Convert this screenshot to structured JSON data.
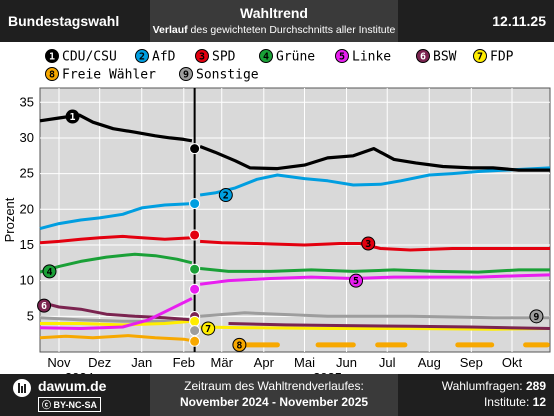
{
  "header": {
    "left_title": "Bundestagswahl",
    "title": "Wahltrend",
    "subtitle_bold": "Verlauf",
    "subtitle_rest": " des gewichteten Durchschnitts aller Institute",
    "date": "12.11.25"
  },
  "footer": {
    "site": "dawum.de",
    "license": "BY-NC-SA",
    "period_label": "Zeitraum des Wahltrendverlaufes:",
    "period_value": "November 2024 - November 2025",
    "polls_label": "Wahlumfragen: ",
    "polls_value": "289",
    "institutes_label": "Institute: ",
    "institutes_value": "12"
  },
  "colors": {
    "background": "#d9d9d9",
    "grid": "#ffffff",
    "event_line": "#000000"
  },
  "chart_data": {
    "type": "line",
    "ylabel": "Prozent",
    "ylim": [
      0,
      37
    ],
    "yticks": [
      5,
      10,
      15,
      20,
      25,
      30,
      35
    ],
    "xlim": [
      "2024-11-01",
      "2025-11-12"
    ],
    "month_ticks": [
      {
        "label": "Nov",
        "date": "2024-11-15"
      },
      {
        "label": "Dez",
        "date": "2024-12-15"
      },
      {
        "label": "Jan",
        "date": "2025-01-15"
      },
      {
        "label": "Feb",
        "date": "2025-02-15"
      },
      {
        "label": "Mär",
        "date": "2025-03-15"
      },
      {
        "label": "Apr",
        "date": "2025-04-15"
      },
      {
        "label": "Mai",
        "date": "2025-05-15"
      },
      {
        "label": "Jun",
        "date": "2025-06-15"
      },
      {
        "label": "Jul",
        "date": "2025-07-15"
      },
      {
        "label": "Aug",
        "date": "2025-08-15"
      },
      {
        "label": "Sep",
        "date": "2025-09-15"
      },
      {
        "label": "Okt",
        "date": "2025-10-15"
      }
    ],
    "year_ticks": [
      {
        "label": "2024",
        "date": "2024-11-30"
      },
      {
        "label": "2025",
        "date": "2025-06-01"
      }
    ],
    "event_date": "2025-02-23",
    "grid": true,
    "legend_position": "top",
    "series": [
      {
        "num": "1",
        "name": "CDU/CSU",
        "color": "#000000",
        "label_pos": [
          "2024-11-25",
          33
        ],
        "result": 28.5,
        "result_after": 28.8,
        "points": [
          [
            "2024-11-01",
            32.4
          ],
          [
            "2024-11-15",
            32.8
          ],
          [
            "2024-11-30",
            33.2
          ],
          [
            "2024-12-10",
            32.2
          ],
          [
            "2024-12-25",
            31.3
          ],
          [
            "2025-01-10",
            30.8
          ],
          [
            "2025-01-25",
            30.3
          ],
          [
            "2025-02-05",
            30.0
          ],
          [
            "2025-02-15",
            29.8
          ],
          [
            "2025-02-21",
            29.6
          ],
          [
            "2025-02-27",
            28.8
          ],
          [
            "2025-03-10",
            28.0
          ],
          [
            "2025-03-25",
            26.8
          ],
          [
            "2025-04-05",
            25.8
          ],
          [
            "2025-04-25",
            25.7
          ],
          [
            "2025-05-15",
            26.2
          ],
          [
            "2025-06-01",
            27.2
          ],
          [
            "2025-06-20",
            27.5
          ],
          [
            "2025-07-05",
            28.5
          ],
          [
            "2025-07-20",
            27.0
          ],
          [
            "2025-08-05",
            26.5
          ],
          [
            "2025-08-25",
            26.0
          ],
          [
            "2025-09-15",
            25.8
          ],
          [
            "2025-10-01",
            25.8
          ],
          [
            "2025-10-20",
            25.5
          ],
          [
            "2025-11-12",
            25.5
          ]
        ]
      },
      {
        "num": "2",
        "name": "AfD",
        "color": "#009ee0",
        "label_pos": [
          "2025-03-18",
          22
        ],
        "result": 20.8,
        "result_after": 22.0,
        "points": [
          [
            "2024-11-01",
            17.3
          ],
          [
            "2024-11-15",
            18.0
          ],
          [
            "2024-12-01",
            18.5
          ],
          [
            "2024-12-15",
            18.8
          ],
          [
            "2025-01-01",
            19.3
          ],
          [
            "2025-01-15",
            20.2
          ],
          [
            "2025-02-01",
            20.6
          ],
          [
            "2025-02-21",
            20.8
          ],
          [
            "2025-02-27",
            22.0
          ],
          [
            "2025-03-10",
            22.3
          ],
          [
            "2025-03-25",
            23.0
          ],
          [
            "2025-04-10",
            24.2
          ],
          [
            "2025-04-25",
            24.8
          ],
          [
            "2025-05-15",
            24.3
          ],
          [
            "2025-06-01",
            24.0
          ],
          [
            "2025-06-20",
            23.4
          ],
          [
            "2025-07-10",
            23.5
          ],
          [
            "2025-07-25",
            24.0
          ],
          [
            "2025-08-15",
            24.8
          ],
          [
            "2025-09-01",
            25.0
          ],
          [
            "2025-09-20",
            25.3
          ],
          [
            "2025-10-10",
            25.5
          ],
          [
            "2025-11-12",
            25.8
          ]
        ]
      },
      {
        "num": "3",
        "name": "SPD",
        "color": "#e3000f",
        "label_pos": [
          "2025-07-01",
          15.2
        ],
        "result": 16.4,
        "result_after": 15.5,
        "points": [
          [
            "2024-11-01",
            15.3
          ],
          [
            "2024-11-15",
            15.5
          ],
          [
            "2024-12-01",
            15.8
          ],
          [
            "2024-12-15",
            16.0
          ],
          [
            "2025-01-01",
            16.2
          ],
          [
            "2025-01-15",
            16.0
          ],
          [
            "2025-02-01",
            15.8
          ],
          [
            "2025-02-21",
            16.0
          ],
          [
            "2025-02-27",
            15.5
          ],
          [
            "2025-03-15",
            15.3
          ],
          [
            "2025-04-10",
            15.2
          ],
          [
            "2025-05-15",
            15.0
          ],
          [
            "2025-06-10",
            15.2
          ],
          [
            "2025-06-25",
            15.2
          ],
          [
            "2025-07-10",
            14.5
          ],
          [
            "2025-08-01",
            14.3
          ],
          [
            "2025-09-01",
            14.5
          ],
          [
            "2025-10-01",
            14.5
          ],
          [
            "2025-11-12",
            14.5
          ]
        ]
      },
      {
        "num": "4",
        "name": "Grüne",
        "color": "#1aa037",
        "label_pos": [
          "2024-11-08",
          11.3
        ],
        "result": 11.6,
        "result_after": 11.7,
        "points": [
          [
            "2024-11-01",
            11.2
          ],
          [
            "2024-11-15",
            12.0
          ],
          [
            "2024-12-01",
            12.7
          ],
          [
            "2024-12-20",
            13.3
          ],
          [
            "2025-01-10",
            13.7
          ],
          [
            "2025-01-25",
            13.5
          ],
          [
            "2025-02-10",
            13.0
          ],
          [
            "2025-02-21",
            12.5
          ],
          [
            "2025-02-27",
            11.7
          ],
          [
            "2025-03-20",
            11.3
          ],
          [
            "2025-04-20",
            11.3
          ],
          [
            "2025-05-20",
            11.5
          ],
          [
            "2025-06-20",
            11.3
          ],
          [
            "2025-07-20",
            11.5
          ],
          [
            "2025-08-20",
            11.3
          ],
          [
            "2025-09-20",
            11.2
          ],
          [
            "2025-10-20",
            11.5
          ],
          [
            "2025-11-12",
            11.5
          ]
        ]
      },
      {
        "num": "5",
        "name": "Linke",
        "color": "#e81ef0",
        "label_pos": [
          "2025-06-22",
          10.0
        ],
        "result": 8.8,
        "result_after": 9.5,
        "points": [
          [
            "2024-11-01",
            3.4
          ],
          [
            "2024-12-01",
            3.3
          ],
          [
            "2025-01-01",
            3.5
          ],
          [
            "2025-01-20",
            4.5
          ],
          [
            "2025-02-05",
            6.0
          ],
          [
            "2025-02-21",
            7.5
          ],
          [
            "2025-02-27",
            9.5
          ],
          [
            "2025-03-20",
            10.0
          ],
          [
            "2025-04-20",
            10.3
          ],
          [
            "2025-05-20",
            10.5
          ],
          [
            "2025-06-20",
            10.3
          ],
          [
            "2025-07-20",
            10.5
          ],
          [
            "2025-08-20",
            10.5
          ],
          [
            "2025-09-20",
            10.5
          ],
          [
            "2025-10-20",
            10.7
          ],
          [
            "2025-11-12",
            10.8
          ]
        ]
      },
      {
        "num": "6",
        "name": "BSW",
        "color": "#7b2450",
        "label_pos": [
          "2024-11-04",
          6.5
        ],
        "result": 4.97,
        "result_after": 4.5,
        "points": [
          [
            "2024-11-01",
            7.0
          ],
          [
            "2024-11-15",
            6.3
          ],
          [
            "2024-12-01",
            6.0
          ],
          [
            "2024-12-20",
            5.3
          ],
          [
            "2025-01-10",
            5.0
          ],
          [
            "2025-02-01",
            4.8
          ],
          [
            "2025-02-21",
            4.5
          ],
          [
            "2025-03-20",
            4.0
          ],
          [
            "2025-05-01",
            3.8
          ],
          [
            "2025-06-15",
            3.7
          ],
          [
            "2025-08-01",
            3.6
          ],
          [
            "2025-09-15",
            3.5
          ],
          [
            "2025-11-12",
            3.3
          ]
        ]
      },
      {
        "num": "7",
        "name": "FDP",
        "color": "#ffed00",
        "label_pos": [
          "2025-03-05",
          3.3
        ],
        "result": 4.3,
        "result_after": 3.5,
        "points": [
          [
            "2024-11-01",
            4.0
          ],
          [
            "2024-12-01",
            4.0
          ],
          [
            "2025-01-01",
            3.8
          ],
          [
            "2025-02-01",
            4.0
          ],
          [
            "2025-02-21",
            4.3
          ],
          [
            "2025-02-27",
            3.5
          ],
          [
            "2025-04-01",
            3.4
          ],
          [
            "2025-06-01",
            3.3
          ],
          [
            "2025-08-01",
            3.3
          ],
          [
            "2025-10-01",
            3.2
          ],
          [
            "2025-11-12",
            3.3
          ]
        ]
      },
      {
        "num": "8",
        "name": "Freie Wähler",
        "color": "#f7a800",
        "label_pos": [
          "2025-03-28",
          1.0
        ],
        "result": 1.5,
        "points": [
          [
            "2024-11-01",
            2.0
          ],
          [
            "2024-11-20",
            2.2
          ],
          [
            "2024-12-10",
            2.0
          ],
          [
            "2025-01-05",
            2.3
          ],
          [
            "2025-01-25",
            2.0
          ],
          [
            "2025-02-15",
            1.8
          ],
          [
            "2025-02-21",
            1.6
          ]
        ],
        "segments": [
          [
            [
              "2025-04-01",
              1.0
            ],
            [
              "2025-04-25",
              1.0
            ]
          ],
          [
            [
              "2025-05-25",
              1.0
            ],
            [
              "2025-06-20",
              1.0
            ]
          ],
          [
            [
              "2025-07-08",
              1.0
            ],
            [
              "2025-07-28",
              1.0
            ]
          ],
          [
            [
              "2025-09-05",
              1.0
            ],
            [
              "2025-09-30",
              1.0
            ]
          ],
          [
            [
              "2025-10-25",
              1.0
            ],
            [
              "2025-11-10",
              1.0
            ]
          ]
        ]
      },
      {
        "num": "9",
        "name": "Sonstige",
        "color": "#9d9d9d",
        "label_pos": [
          "2025-11-02",
          5.0
        ],
        "result": 3.0,
        "result_after": 4.8,
        "points": [
          [
            "2024-11-01",
            4.8
          ],
          [
            "2024-12-01",
            4.5
          ],
          [
            "2025-01-01",
            4.3
          ],
          [
            "2025-02-01",
            4.3
          ],
          [
            "2025-02-21",
            4.3
          ],
          [
            "2025-02-27",
            5.0
          ],
          [
            "2025-04-01",
            5.5
          ],
          [
            "2025-06-01",
            5.0
          ],
          [
            "2025-08-01",
            5.0
          ],
          [
            "2025-10-01",
            4.8
          ],
          [
            "2025-11-12",
            4.8
          ]
        ]
      }
    ]
  }
}
